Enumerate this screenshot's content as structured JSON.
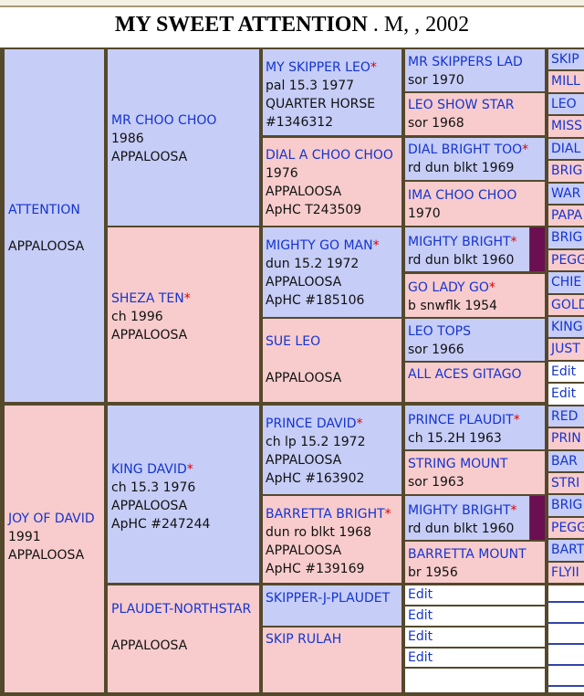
{
  "title": {
    "horse_name": "MY SWEET ATTENTION",
    "details": " . M, , 2002"
  },
  "gen1": {
    "sire": {
      "name": "ATTENTION",
      "line1": "APPALOOSA"
    },
    "dam": {
      "name": "JOY OF DAVID",
      "line1": "1991",
      "line2": "APPALOOSA"
    }
  },
  "gen2": {
    "ss": {
      "name": "MR CHOO CHOO",
      "line1": "1986",
      "line2": "APPALOOSA"
    },
    "sd": {
      "name": "SHEZA TEN",
      "star": "*",
      "line1": "ch 1996",
      "line2": "APPALOOSA"
    },
    "ds": {
      "name": "KING DAVID",
      "star": "*",
      "line1": "ch 15.3 1976",
      "line2": "APPALOOSA",
      "line3": "ApHC #247244"
    },
    "dd": {
      "name": "PLAUDET-NORTHSTAR",
      "line1": "APPALOOSA"
    }
  },
  "gen3": {
    "sss": {
      "name": "MY SKIPPER LEO",
      "star": "*",
      "line1": "pal 15.3 1977",
      "line2": "QUARTER HORSE",
      "line3": "#1346312"
    },
    "ssd": {
      "name": "DIAL A CHOO CHOO",
      "line1": "1976",
      "line2": "APPALOOSA",
      "line3": "ApHC T243509"
    },
    "sds": {
      "name": "MIGHTY GO MAN",
      "star": "*",
      "line1": "dun 15.2 1972",
      "line2": "APPALOOSA",
      "line3": "ApHC #185106"
    },
    "sdd": {
      "name": "SUE LEO",
      "line1": "APPALOOSA"
    },
    "dss": {
      "name": "PRINCE DAVID",
      "star": "*",
      "line1": "ch lp 15.2 1972",
      "line2": "APPALOOSA",
      "line3": "ApHC #163902"
    },
    "dsd": {
      "name": "BARRETTA BRIGHT",
      "star": "*",
      "line1": "dun ro blkt 1968",
      "line2": "APPALOOSA",
      "line3": "ApHC #139169"
    },
    "dds": {
      "name": "SKIPPER-J-PLAUDET"
    },
    "ddd": {
      "name": "SKIP RULAH"
    }
  },
  "gen4": [
    {
      "name": "MR SKIPPERS LAD",
      "star": "",
      "line1": "sor 1970"
    },
    {
      "name": "LEO SHOW STAR",
      "star": "",
      "line1": "sor 1968"
    },
    {
      "name": "DIAL BRIGHT TOO",
      "star": "*",
      "line1": "rd dun blkt 1969"
    },
    {
      "name": "IMA CHOO CHOO",
      "star": "",
      "line1": "1970"
    },
    {
      "name": "MIGHTY BRIGHT",
      "star": "*",
      "line1": "rd dun blkt 1960"
    },
    {
      "name": "GO LADY GO",
      "star": "*",
      "line1": "b snwflk 1954"
    },
    {
      "name": "LEO TOPS",
      "star": "",
      "line1": "sor 1966"
    },
    {
      "name": "ALL ACES GITAGO",
      "star": "",
      "line1": ""
    },
    {
      "name": "PRINCE PLAUDIT",
      "star": "*",
      "line1": "ch 15.2H 1963"
    },
    {
      "name": "STRING MOUNT",
      "star": "",
      "line1": "sor 1963"
    },
    {
      "name": "MIGHTY BRIGHT",
      "star": "*",
      "line1": "rd dun blkt 1960"
    },
    {
      "name": "BARRETTA MOUNT",
      "star": "",
      "line1": "br 1956"
    }
  ],
  "gen4_edit": [
    "Edit",
    "Edit",
    "Edit",
    "Edit"
  ],
  "gen5": [
    "SKIP",
    "MILL",
    "LEO",
    "MISS",
    "DIAL",
    "BRIG",
    "WAR",
    "PAPA",
    "BRIG",
    "PEGG",
    "CHIE",
    "GOLD",
    "KING",
    "JUST",
    "Edit",
    "Edit",
    "RED",
    "PRIN",
    "BAR",
    "STRI",
    "BRIG",
    "PEGG",
    "BART",
    "FLYII"
  ]
}
